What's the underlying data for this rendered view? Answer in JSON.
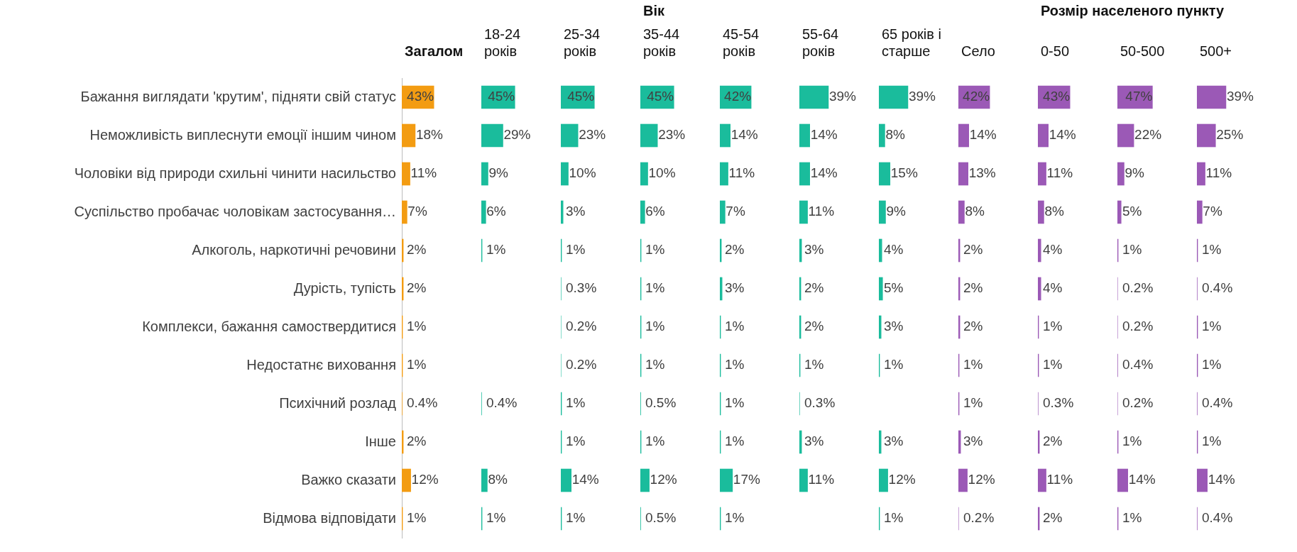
{
  "chart_data": [
    {
      "type": "bar",
      "orientation": "horizontal",
      "title": "Загалом",
      "tick_labels": "y",
      "categories": [
        "Бажання виглядати 'крутим', підняти свій статус",
        "Неможливість виплеснути емоції іншим чином",
        "Чоловіки від природи схильні чинити насильство",
        "Суспільство пробачає чоловікам застосування…",
        "Алкоголь, наркотичні речовини",
        "Дурість, тупість",
        "Комплекси, бажання самоствердитися",
        "Недостатнє виховання",
        "Психічний розлад",
        "Інше",
        "Важко сказати",
        "Відмова відповідати"
      ],
      "color": "#f39c12",
      "values": [
        43,
        18,
        11,
        7,
        2,
        2,
        1,
        1,
        0.4,
        2,
        12,
        1
      ],
      "value_labels": [
        "43%",
        "18%",
        "11%",
        "7%",
        "2%",
        "2%",
        "1%",
        "1%",
        "0.4%",
        "2%",
        "12%",
        "1%"
      ]
    },
    {
      "type": "bar",
      "orientation": "horizontal",
      "title": "18-24\nроків",
      "tick_labels": false,
      "color": "#1abc9c",
      "values": [
        45,
        29,
        9,
        6,
        1,
        null,
        null,
        null,
        0.4,
        null,
        8,
        1
      ],
      "value_labels": [
        "45%",
        "29%",
        "9%",
        "6%",
        "1%",
        null,
        null,
        null,
        "0.4%",
        null,
        "8%",
        "1%"
      ]
    },
    {
      "type": "bar",
      "orientation": "horizontal",
      "title": "25-34\nроків",
      "tick_labels": false,
      "color": "#1abc9c",
      "values": [
        45,
        23,
        10,
        3,
        1,
        0.3,
        0.2,
        0.2,
        1,
        1,
        14,
        1
      ],
      "value_labels": [
        "45%",
        "23%",
        "10%",
        "3%",
        "1%",
        "0.3%",
        "0.2%",
        "0.2%",
        "1%",
        "1%",
        "14%",
        "1%"
      ]
    },
    {
      "type": "bar",
      "orientation": "horizontal",
      "title": "35-44\nроків",
      "subtitle": "Вік",
      "tick_labels": false,
      "color": "#1abc9c",
      "values": [
        45,
        23,
        10,
        6,
        1,
        1,
        1,
        1,
        0.5,
        1,
        12,
        0.5
      ],
      "value_labels": [
        "45%",
        "23%",
        "10%",
        "6%",
        "1%",
        "1%",
        "1%",
        "1%",
        "0.5%",
        "1%",
        "12%",
        "0.5%"
      ]
    },
    {
      "type": "bar",
      "orientation": "horizontal",
      "title": "45-54\nроків",
      "tick_labels": false,
      "color": "#1abc9c",
      "values": [
        42,
        14,
        11,
        7,
        2,
        3,
        1,
        1,
        1,
        1,
        17,
        1
      ],
      "value_labels": [
        "42%",
        "14%",
        "11%",
        "7%",
        "2%",
        "3%",
        "1%",
        "1%",
        "1%",
        "1%",
        "17%",
        "1%"
      ]
    },
    {
      "type": "bar",
      "orientation": "horizontal",
      "title": "55-64\nроків",
      "tick_labels": false,
      "color": "#1abc9c",
      "values": [
        39,
        14,
        14,
        11,
        3,
        2,
        2,
        1,
        0.3,
        3,
        11,
        null
      ],
      "value_labels": [
        "39%",
        "14%",
        "14%",
        "11%",
        "3%",
        "2%",
        "2%",
        "1%",
        "0.3%",
        "3%",
        "11%",
        null
      ]
    },
    {
      "type": "bar",
      "orientation": "horizontal",
      "title": "65 років і\nстарше",
      "tick_labels": false,
      "color": "#1abc9c",
      "values": [
        39,
        8,
        15,
        9,
        4,
        5,
        3,
        1,
        null,
        3,
        12,
        1
      ],
      "value_labels": [
        "39%",
        "8%",
        "15%",
        "9%",
        "4%",
        "5%",
        "3%",
        "1%",
        null,
        "3%",
        "12%",
        "1%"
      ]
    },
    {
      "type": "bar",
      "orientation": "horizontal",
      "title": "Село",
      "tick_labels": false,
      "color": "#9b59b6",
      "values": [
        42,
        14,
        13,
        8,
        2,
        2,
        2,
        1,
        1,
        3,
        12,
        0.2
      ],
      "value_labels": [
        "42%",
        "14%",
        "13%",
        "8%",
        "2%",
        "2%",
        "2%",
        "1%",
        "1%",
        "3%",
        "12%",
        "0.2%"
      ]
    },
    {
      "type": "bar",
      "orientation": "horizontal",
      "title": "0-50",
      "subtitle": "Розмір населеного пункту",
      "tick_labels": false,
      "color": "#9b59b6",
      "values": [
        43,
        14,
        11,
        8,
        4,
        4,
        1,
        1,
        0.3,
        2,
        11,
        2
      ],
      "value_labels": [
        "43%",
        "14%",
        "11%",
        "8%",
        "4%",
        "4%",
        "1%",
        "1%",
        "0.3%",
        "2%",
        "11%",
        "2%"
      ]
    },
    {
      "type": "bar",
      "orientation": "horizontal",
      "title": "50-500",
      "tick_labels": false,
      "color": "#9b59b6",
      "values": [
        47,
        22,
        9,
        5,
        1,
        0.2,
        0.2,
        0.4,
        0.2,
        1,
        14,
        1
      ],
      "value_labels": [
        "47%",
        "22%",
        "9%",
        "5%",
        "1%",
        "0.2%",
        "0.2%",
        "0.4%",
        "0.2%",
        "1%",
        "14%",
        "1%"
      ]
    },
    {
      "type": "bar",
      "orientation": "horizontal",
      "title": "500+",
      "tick_labels": false,
      "color": "#9b59b6",
      "values": [
        39,
        25,
        11,
        7,
        1,
        0.4,
        1,
        1,
        0.4,
        1,
        14,
        0.4
      ],
      "value_labels": [
        "39%",
        "25%",
        "11%",
        "7%",
        "1%",
        "0.4%",
        "1%",
        "1%",
        "0.4%",
        "1%",
        "14%",
        "0.4%"
      ]
    }
  ]
}
